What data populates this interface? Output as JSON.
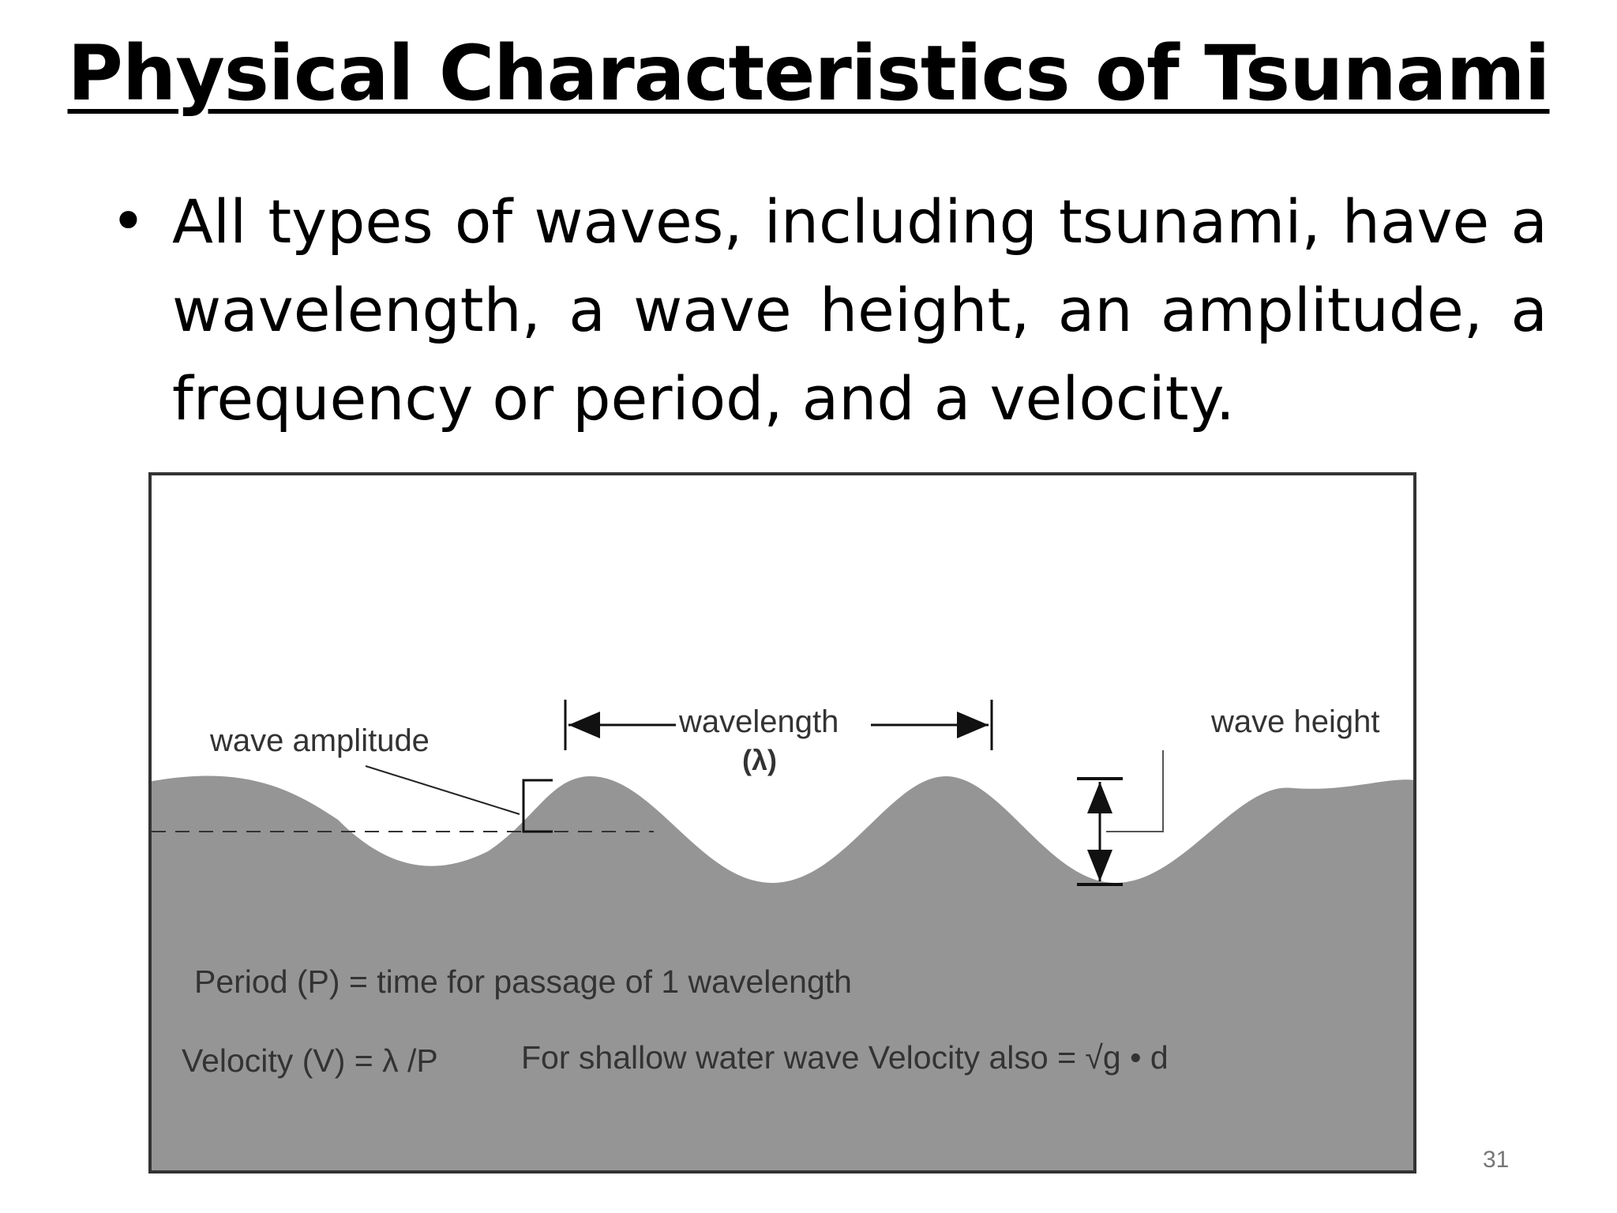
{
  "slide": {
    "title": "Physical Characteristics of Tsunami",
    "bullet": "All types of waves, including tsunami, have a wavelength, a wave height, an amplitude, a frequency or period, and a velocity.",
    "page_number": "31"
  },
  "diagram": {
    "labels": {
      "wave_amplitude": "wave amplitude",
      "wavelength": "wavelength",
      "lambda": "(λ)",
      "wave_height": "wave height",
      "period": "Period (P) = time for passage of 1 wavelength",
      "velocity": "Velocity (V) = λ /P",
      "shallow": "For shallow water wave Velocity also = √g • d"
    },
    "colors": {
      "water": "#959595",
      "line": "#222222",
      "border": "#333333"
    }
  }
}
